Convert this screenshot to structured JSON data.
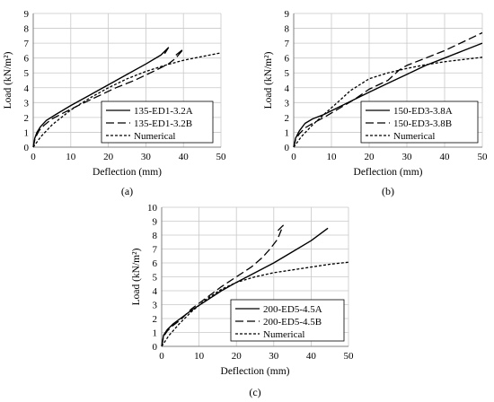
{
  "chart_data": [
    {
      "panel": "(a)",
      "type": "line",
      "xlabel": "Deflection (mm)",
      "ylabel": "Load (kN/m²)",
      "xlim": [
        0,
        50
      ],
      "ylim": [
        0,
        9
      ],
      "xticks": [
        0,
        10,
        20,
        30,
        40,
        50
      ],
      "yticks": [
        0,
        1,
        2,
        3,
        4,
        5,
        6,
        7,
        8,
        9
      ],
      "grid": true,
      "legend": "bottom-right",
      "series": [
        {
          "name": "135-ED1-3.2A",
          "style": "solid",
          "x": [
            0,
            0.4,
            1,
            2,
            3.5,
            6,
            10,
            15,
            20,
            25,
            30,
            34,
            36,
            35
          ],
          "y": [
            0,
            0.6,
            1.0,
            1.4,
            1.8,
            2.2,
            2.8,
            3.5,
            4.2,
            4.9,
            5.6,
            6.2,
            6.7,
            6.3
          ]
        },
        {
          "name": "135-ED1-3.2B",
          "style": "dashed",
          "x": [
            0,
            0.5,
            1.5,
            3,
            5,
            8,
            12,
            17,
            22,
            27,
            32,
            36,
            38,
            40,
            38
          ],
          "y": [
            0,
            0.6,
            1.1,
            1.5,
            1.9,
            2.3,
            2.8,
            3.4,
            4.0,
            4.5,
            5.1,
            5.6,
            6.0,
            6.6,
            6.2
          ]
        },
        {
          "name": "Numerical",
          "style": "dotted",
          "x": [
            0,
            2,
            5,
            10,
            15,
            20,
            25,
            30,
            35,
            40,
            45,
            50
          ],
          "y": [
            0,
            0.7,
            1.5,
            2.5,
            3.3,
            4.0,
            4.6,
            5.1,
            5.5,
            5.85,
            6.1,
            6.35
          ]
        }
      ]
    },
    {
      "panel": "(b)",
      "type": "line",
      "xlabel": "Deflection (mm)",
      "ylabel": "Load (kN/m²)",
      "xlim": [
        0,
        50
      ],
      "ylim": [
        0,
        9
      ],
      "xticks": [
        0,
        10,
        20,
        30,
        40,
        50
      ],
      "yticks": [
        0,
        1,
        2,
        3,
        4,
        5,
        6,
        7,
        8,
        9
      ],
      "grid": true,
      "legend": "bottom-right",
      "series": [
        {
          "name": "150-ED3-3.8A",
          "style": "solid",
          "x": [
            0,
            0.5,
            1.5,
            3,
            5,
            8,
            12,
            16,
            20,
            25,
            30,
            35,
            40,
            45,
            50
          ],
          "y": [
            0,
            0.6,
            1.1,
            1.6,
            1.9,
            2.2,
            2.7,
            3.2,
            3.7,
            4.3,
            4.9,
            5.5,
            6.0,
            6.5,
            7.0
          ]
        },
        {
          "name": "150-ED3-3.8B",
          "style": "dashed",
          "x": [
            0,
            0.5,
            1.5,
            3,
            5,
            8,
            12,
            16,
            20,
            25,
            28,
            30,
            35,
            40,
            45,
            50
          ],
          "y": [
            0,
            0.5,
            0.9,
            1.3,
            1.6,
            2.0,
            2.6,
            3.2,
            3.9,
            4.5,
            5.2,
            5.5,
            6.0,
            6.5,
            7.1,
            7.7
          ]
        },
        {
          "name": "Numerical",
          "style": "dotted",
          "x": [
            0,
            2,
            5,
            8,
            12,
            15,
            20,
            25,
            30,
            35,
            40,
            45,
            50
          ],
          "y": [
            0,
            0.7,
            1.5,
            2.2,
            3.1,
            3.8,
            4.6,
            5.0,
            5.3,
            5.55,
            5.75,
            5.9,
            6.05
          ]
        }
      ]
    },
    {
      "panel": "(c)",
      "type": "line",
      "xlabel": "Deflection (mm)",
      "ylabel": "Load (kN/m²)",
      "xlim": [
        0,
        50
      ],
      "ylim": [
        0,
        10
      ],
      "xticks": [
        0,
        10,
        20,
        30,
        40,
        50
      ],
      "yticks": [
        0,
        1,
        2,
        3,
        4,
        5,
        6,
        7,
        8,
        9,
        10
      ],
      "grid": true,
      "legend": "bottom-right",
      "series": [
        {
          "name": "200-ED5-4.5A",
          "style": "solid",
          "x": [
            0,
            0.5,
            1.5,
            3,
            5,
            8,
            12,
            16,
            20,
            25,
            30,
            35,
            40,
            44.5
          ],
          "y": [
            0,
            0.8,
            1.2,
            1.6,
            2.0,
            2.6,
            3.3,
            4.0,
            4.6,
            5.3,
            6.0,
            6.8,
            7.6,
            8.5
          ]
        },
        {
          "name": "200-ED5-4.5B",
          "style": "dashed",
          "x": [
            0,
            0.5,
            1.5,
            3,
            5,
            8,
            12,
            16,
            20,
            24,
            27,
            29,
            31,
            32.5,
            31
          ],
          "y": [
            0,
            0.7,
            1.1,
            1.5,
            1.9,
            2.7,
            3.5,
            4.3,
            5.0,
            5.7,
            6.4,
            7.0,
            7.7,
            8.7,
            8.3
          ]
        },
        {
          "name": "Numerical",
          "style": "dotted",
          "x": [
            0,
            2,
            5,
            8,
            12,
            16,
            20,
            25,
            30,
            35,
            40,
            45,
            50
          ],
          "y": [
            0,
            0.8,
            1.7,
            2.5,
            3.4,
            4.1,
            4.6,
            5.0,
            5.3,
            5.5,
            5.7,
            5.9,
            6.05
          ]
        }
      ]
    }
  ]
}
